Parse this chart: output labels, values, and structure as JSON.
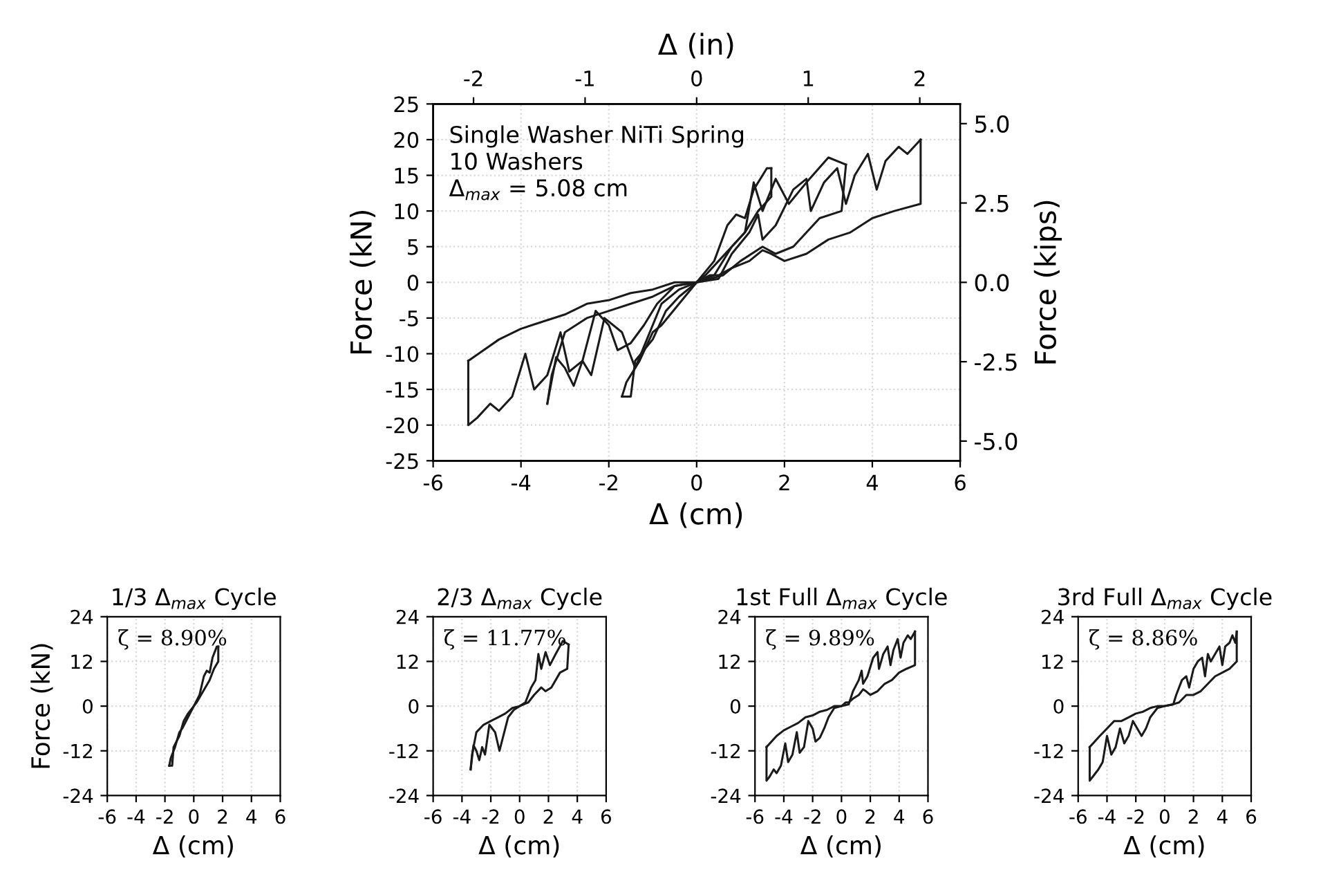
{
  "chart_data": [
    {
      "type": "line",
      "xlabel": "Δ (cm)",
      "ylabel": "Force (kN)",
      "x2label": "Δ (in)",
      "y2label": "Force (kips)",
      "xlim": [
        -6,
        6
      ],
      "xticks": [
        -6,
        -4,
        -2,
        0,
        2,
        4,
        6
      ],
      "ylim": [
        -25,
        25
      ],
      "yticks": [
        -25,
        -20,
        -15,
        -10,
        -5,
        0,
        5,
        10,
        15,
        20,
        25
      ],
      "x2lim": [
        -2.362,
        2.362
      ],
      "x2ticks": [
        -2,
        -1,
        0,
        1,
        2
      ],
      "y2lim": [
        -5.62,
        5.62
      ],
      "y2ticks": [
        {
          "value": -5,
          "label": "-5.0"
        },
        {
          "value": -2.5,
          "label": "-2.5"
        },
        {
          "value": 0,
          "label": "0.0"
        },
        {
          "value": 2.5,
          "label": "2.5"
        },
        {
          "value": 5,
          "label": "5.0"
        }
      ],
      "grid": true,
      "marker": "none",
      "line_style": "solid",
      "annotations": [
        "Single Washer NiTi Spring",
        "10 Washers",
        "Δ$_{max}$ = 5.08 cm"
      ],
      "series": [
        {
          "color": "#1a1a1a",
          "x": [
            -1.7,
            -1.5,
            -1.4,
            -1,
            -0.7,
            -0.4,
            0,
            0.4,
            0.7,
            0.9,
            1.1,
            1.3,
            1.6,
            1.7
          ],
          "values": [
            -16,
            -16,
            -11,
            -8,
            -4,
            -2,
            0,
            3,
            8,
            9.5,
            9,
            13,
            16,
            16
          ]
        },
        {
          "color": "#1a1a1a",
          "x": [
            -1.7,
            -1.6,
            -1.3,
            -1,
            -0.8,
            -0.4,
            0,
            0.2,
            0.5,
            0.8,
            1.1,
            1.4,
            1.7,
            1.7
          ],
          "values": [
            -16,
            -14,
            -11,
            -7,
            -6,
            -3,
            0,
            1,
            3,
            5,
            7,
            10,
            12,
            16
          ]
        },
        {
          "color": "#1a1a1a",
          "x": [
            -3.4,
            -3.3,
            -3.0,
            -2.5,
            -2,
            -1.5,
            -1,
            -0.5,
            0,
            0.4,
            0.8,
            1.1,
            1.3,
            1.5,
            1.8,
            2.1,
            2.5,
            3.0,
            3.4
          ],
          "values": [
            -17,
            -13,
            -7,
            -5,
            -4,
            -3,
            -2,
            -0.5,
            0,
            1,
            5,
            7,
            14,
            10,
            14.5,
            11,
            14,
            17.5,
            16.5
          ]
        },
        {
          "color": "#1a1a1a",
          "x": [
            -3.4,
            -3.2,
            -3.0,
            -2.8,
            -2.6,
            -2.4,
            -2.1,
            -1.7,
            -1.4,
            -1.2,
            -0.8,
            -0.4,
            0,
            0.6,
            1.0,
            1.5,
            1.8,
            2.2,
            2.8,
            3.3,
            3.4
          ],
          "values": [
            -17,
            -10.5,
            -12,
            -14.5,
            -11,
            -13,
            -5,
            -7,
            -12,
            -9,
            -3,
            -1,
            0,
            1,
            3,
            5,
            4,
            5,
            9,
            10,
            16.5
          ]
        },
        {
          "color": "#1a1a1a",
          "x": [
            -5.2,
            -4.5,
            -4.0,
            -3.5,
            -3.0,
            -2.5,
            -2.0,
            -1.5,
            -1.0,
            -0.5,
            0,
            0.5,
            0.8,
            1.2,
            1.4,
            1.5,
            1.8,
            2.2,
            2.5,
            2.6,
            2.9,
            3.2,
            3.4,
            3.6,
            3.9,
            4.1,
            4.3,
            4.6,
            4.8,
            5.1
          ],
          "values": [
            -11,
            -8,
            -6.5,
            -5.5,
            -4.5,
            -3,
            -2.5,
            -1.5,
            -1,
            0,
            0,
            0.5,
            4,
            7,
            9.5,
            6,
            8,
            13,
            14.5,
            10,
            14,
            16,
            11,
            15,
            18,
            13,
            17,
            19,
            18,
            20
          ]
        },
        {
          "color": "#1a1a1a",
          "x": [
            -5.2,
            -5.2,
            -5.0,
            -4.7,
            -4.5,
            -4.2,
            -3.9,
            -3.7,
            -3.4,
            -3.1,
            -2.9,
            -2.6,
            -2.3,
            -2.0,
            -1.8,
            -1.5,
            -1.2,
            -0.9,
            -0.5,
            0,
            0.3,
            0.5,
            0.8,
            1.2,
            1.5,
            1.7,
            2.0,
            2.5,
            3.0,
            3.5,
            4.0,
            4.5,
            5.1,
            5.1
          ],
          "values": [
            -11,
            -20,
            -19,
            -17,
            -18,
            -16,
            -10,
            -15,
            -13,
            -7,
            -12.5,
            -11,
            -4,
            -6,
            -9.5,
            -8.5,
            -6,
            -3,
            -0.5,
            0,
            1,
            1,
            2,
            3,
            4.5,
            4,
            3,
            4,
            6,
            7,
            9,
            10,
            11,
            20
          ]
        }
      ]
    },
    {
      "type": "line",
      "title": "1/3 Δ$_{max}$ Cycle",
      "xlabel": "Δ (cm)",
      "ylabel": "Force (kN)",
      "xlim": [
        -6,
        6
      ],
      "xticks": [
        -6,
        -4,
        -2,
        0,
        2,
        4,
        6
      ],
      "ylim": [
        -24,
        24
      ],
      "yticks": [
        -24,
        -12,
        0,
        12,
        24
      ],
      "grid": true,
      "marker": "none",
      "line_style": "solid",
      "annotations": [
        "ζ = 8.90%"
      ],
      "series": [
        {
          "color": "#1a1a1a",
          "x": [
            -1.7,
            -1.5,
            -1.4,
            -1,
            -0.7,
            -0.4,
            0,
            0.4,
            0.7,
            0.9,
            1.1,
            1.3,
            1.6,
            1.7
          ],
          "values": [
            -16,
            -16,
            -11,
            -8,
            -4,
            -2,
            0,
            3,
            8,
            9.5,
            9,
            13,
            16,
            16
          ]
        },
        {
          "color": "#1a1a1a",
          "x": [
            -1.7,
            -1.6,
            -1.3,
            -1,
            -0.8,
            -0.4,
            0,
            0.2,
            0.5,
            0.8,
            1.1,
            1.4,
            1.7,
            1.7
          ],
          "values": [
            -16,
            -14,
            -11,
            -7,
            -6,
            -3,
            0,
            1,
            3,
            5,
            7,
            10,
            12,
            16
          ]
        }
      ]
    },
    {
      "type": "line",
      "title": "2/3 Δ$_{max}$ Cycle",
      "xlabel": "Δ (cm)",
      "xlim": [
        -6,
        6
      ],
      "xticks": [
        -6,
        -4,
        -2,
        0,
        2,
        4,
        6
      ],
      "ylim": [
        -24,
        24
      ],
      "yticks": [
        -24,
        -12,
        0,
        12,
        24
      ],
      "grid": true,
      "marker": "none",
      "line_style": "solid",
      "annotations": [
        "ζ = 11.77%"
      ],
      "series": [
        {
          "color": "#1a1a1a",
          "x": [
            -3.4,
            -3.3,
            -3.0,
            -2.5,
            -2,
            -1.5,
            -1,
            -0.5,
            0,
            0.4,
            0.8,
            1.1,
            1.3,
            1.5,
            1.8,
            2.1,
            2.5,
            3.0,
            3.4
          ],
          "values": [
            -17,
            -13,
            -7,
            -5,
            -4,
            -3,
            -2,
            -0.5,
            0,
            1,
            5,
            7,
            14,
            10,
            14.5,
            11,
            14,
            17.5,
            16.5
          ]
        },
        {
          "color": "#1a1a1a",
          "x": [
            -3.4,
            -3.2,
            -3.0,
            -2.8,
            -2.6,
            -2.4,
            -2.1,
            -1.7,
            -1.4,
            -1.2,
            -0.8,
            -0.4,
            0,
            0.6,
            1.0,
            1.5,
            1.8,
            2.2,
            2.8,
            3.3,
            3.4
          ],
          "values": [
            -17,
            -10.5,
            -12,
            -14.5,
            -11,
            -13,
            -5,
            -7,
            -12,
            -9,
            -3,
            -1,
            0,
            1,
            3,
            5,
            4,
            5,
            9,
            10,
            16.5
          ]
        }
      ]
    },
    {
      "type": "line",
      "title": "1st Full Δ$_{max}$ Cycle",
      "xlabel": "Δ (cm)",
      "xlim": [
        -6,
        6
      ],
      "xticks": [
        -6,
        -4,
        -2,
        0,
        2,
        4,
        6
      ],
      "ylim": [
        -24,
        24
      ],
      "yticks": [
        -24,
        -12,
        0,
        12,
        24
      ],
      "grid": true,
      "marker": "none",
      "line_style": "solid",
      "annotations": [
        "ζ = 9.89%"
      ],
      "series": [
        {
          "color": "#1a1a1a",
          "x": [
            -5.2,
            -4.5,
            -4.0,
            -3.5,
            -3.0,
            -2.5,
            -2.0,
            -1.5,
            -1.0,
            -0.5,
            0,
            0.5,
            0.8,
            1.2,
            1.4,
            1.5,
            1.8,
            2.2,
            2.5,
            2.6,
            2.9,
            3.2,
            3.4,
            3.6,
            3.9,
            4.1,
            4.3,
            4.6,
            4.8,
            5.1
          ],
          "values": [
            -11,
            -8,
            -6.5,
            -5.5,
            -4.5,
            -3,
            -2.5,
            -1.5,
            -1,
            0,
            0,
            0.5,
            4,
            7,
            9.5,
            6,
            8,
            13,
            14.5,
            10,
            14,
            16,
            11,
            15,
            18,
            13,
            17,
            19,
            18,
            20
          ]
        },
        {
          "color": "#1a1a1a",
          "x": [
            -5.2,
            -5.2,
            -5.0,
            -4.7,
            -4.5,
            -4.2,
            -3.9,
            -3.7,
            -3.4,
            -3.1,
            -2.9,
            -2.6,
            -2.3,
            -2.0,
            -1.8,
            -1.5,
            -1.2,
            -0.9,
            -0.5,
            0,
            0.3,
            0.5,
            0.8,
            1.2,
            1.5,
            1.7,
            2.0,
            2.5,
            3.0,
            3.5,
            4.0,
            4.5,
            5.1,
            5.1
          ],
          "values": [
            -11,
            -20,
            -19,
            -17,
            -18,
            -16,
            -10,
            -15,
            -13,
            -7,
            -12.5,
            -11,
            -4,
            -6,
            -9.5,
            -8.5,
            -6,
            -3,
            -0.5,
            0,
            1,
            1,
            2,
            3,
            4.5,
            4,
            3,
            4,
            6,
            7,
            9,
            10,
            11,
            20
          ]
        }
      ]
    },
    {
      "type": "line",
      "title": "3rd Full Δ$_{max}$ Cycle",
      "xlabel": "Δ (cm)",
      "xlim": [
        -6,
        6
      ],
      "xticks": [
        -6,
        -4,
        -2,
        0,
        2,
        4,
        6
      ],
      "ylim": [
        -24,
        24
      ],
      "yticks": [
        -24,
        -12,
        0,
        12,
        24
      ],
      "grid": true,
      "marker": "none",
      "line_style": "solid",
      "annotations": [
        "ζ = 8.86%"
      ],
      "series": [
        {
          "color": "#1a1a1a",
          "x": [
            -5.2,
            -4.5,
            -4,
            -3.5,
            -3,
            -2.5,
            -2,
            -1.5,
            -1,
            -0.5,
            0,
            0.6,
            0.8,
            1.2,
            1.5,
            1.7,
            2.0,
            2.3,
            2.6,
            2.8,
            3.0,
            3.2,
            3.5,
            3.8,
            4.0,
            4.2,
            4.5,
            4.7,
            4.9,
            5.0
          ],
          "values": [
            -11,
            -8,
            -6,
            -4,
            -4,
            -3,
            -2,
            -1.5,
            -0.5,
            0,
            0,
            0.5,
            3,
            7,
            8,
            5,
            10,
            12,
            13,
            8,
            14,
            12,
            14,
            16,
            11,
            16,
            17,
            19,
            17,
            20
          ]
        },
        {
          "color": "#1a1a1a",
          "x": [
            -5.2,
            -5.2,
            -5.0,
            -4.6,
            -4.3,
            -4.0,
            -3.7,
            -3.4,
            -3.1,
            -2.8,
            -2.5,
            -2.2,
            -1.9,
            -1.6,
            -1.3,
            -1.0,
            -0.5,
            0,
            0.6,
            1.0,
            1.5,
            2.0,
            2.5,
            3.0,
            3.5,
            4.0,
            4.5,
            5.0,
            5.0
          ],
          "values": [
            -11,
            -20,
            -19,
            -17,
            -15,
            -8,
            -13,
            -11,
            -6,
            -10,
            -8,
            -4,
            -6,
            -8,
            -6,
            -3,
            -0.5,
            0,
            0.5,
            1,
            3,
            3,
            4,
            6,
            8,
            9,
            10,
            12,
            20
          ]
        }
      ]
    }
  ]
}
